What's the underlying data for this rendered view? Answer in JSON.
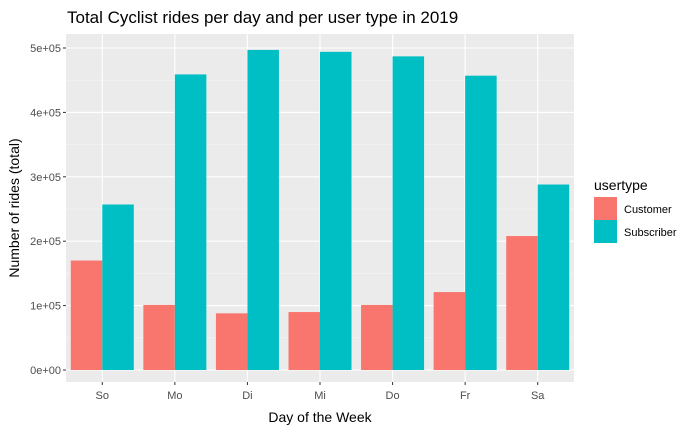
{
  "chart_data": {
    "type": "bar",
    "title": "Total Cyclist rides per day and per user type in 2019",
    "xlabel": "Day of the Week",
    "ylabel": "Number of rides (total)",
    "categories": [
      "So",
      "Mo",
      "Di",
      "Mi",
      "Do",
      "Fr",
      "Sa"
    ],
    "ylim": [
      0,
      520000
    ],
    "yticks": [
      0,
      100000,
      200000,
      300000,
      400000,
      500000
    ],
    "ytick_labels": [
      "0e+00",
      "1e+05",
      "2e+05",
      "3e+05",
      "4e+05",
      "5e+05"
    ],
    "grid": true,
    "legend": {
      "title": "usertype",
      "position": "right"
    },
    "series": [
      {
        "name": "Customer",
        "color": "#F8766D",
        "values": [
          170000,
          101000,
          88000,
          90000,
          101000,
          121000,
          208000
        ]
      },
      {
        "name": "Subscriber",
        "color": "#00BFC4",
        "values": [
          257000,
          459000,
          497000,
          494000,
          487000,
          457000,
          288000
        ]
      }
    ]
  }
}
